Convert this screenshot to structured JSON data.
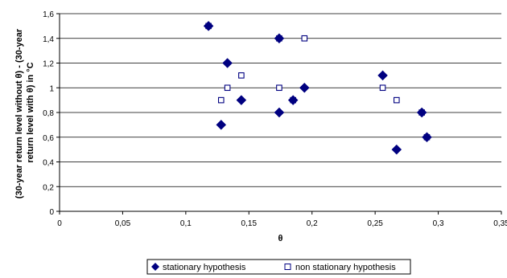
{
  "chart_data": {
    "type": "scatter",
    "xlabel": "θ",
    "ylabel_lines": [
      "(30-year return level without θ) - (30-year",
      "return level with θ) in °C"
    ],
    "xlim": [
      0,
      0.35
    ],
    "ylim": [
      0,
      1.6
    ],
    "xticks": [
      0,
      0.05,
      0.1,
      0.15,
      0.2,
      0.25,
      0.3,
      0.35
    ],
    "xtick_labels": [
      "0",
      "0,05",
      "0,1",
      "0,15",
      "0,2",
      "0,25",
      "0,3",
      "0,35"
    ],
    "yticks": [
      0,
      0.2,
      0.4,
      0.6,
      0.8,
      1.0,
      1.2,
      1.4,
      1.6
    ],
    "ytick_labels": [
      "0",
      "0,2",
      "0,4",
      "0,6",
      "0,8",
      "1",
      "1,2",
      "1,4",
      "1,6"
    ],
    "grid": "horizontal",
    "legend_position": "bottom",
    "colors": {
      "stationary": "#000080",
      "non_stationary": "#000080",
      "grid": "#000000"
    },
    "series": [
      {
        "name": "stationary hypothesis",
        "marker": "filled-diamond",
        "points": [
          {
            "x": 0.118,
            "y": 1.5
          },
          {
            "x": 0.128,
            "y": 0.7
          },
          {
            "x": 0.133,
            "y": 1.2
          },
          {
            "x": 0.144,
            "y": 0.9
          },
          {
            "x": 0.174,
            "y": 1.4
          },
          {
            "x": 0.174,
            "y": 0.8
          },
          {
            "x": 0.185,
            "y": 0.9
          },
          {
            "x": 0.194,
            "y": 1.0
          },
          {
            "x": 0.256,
            "y": 1.1
          },
          {
            "x": 0.267,
            "y": 0.5
          },
          {
            "x": 0.287,
            "y": 0.8
          },
          {
            "x": 0.291,
            "y": 0.6
          }
        ]
      },
      {
        "name": "non stationary hypothesis",
        "marker": "hollow-square",
        "points": [
          {
            "x": 0.118,
            "y": 1.5
          },
          {
            "x": 0.128,
            "y": 0.9
          },
          {
            "x": 0.133,
            "y": 1.0
          },
          {
            "x": 0.144,
            "y": 1.1
          },
          {
            "x": 0.174,
            "y": 1.4
          },
          {
            "x": 0.174,
            "y": 1.0
          },
          {
            "x": 0.185,
            "y": 0.9
          },
          {
            "x": 0.194,
            "y": 1.4
          },
          {
            "x": 0.256,
            "y": 1.0
          },
          {
            "x": 0.267,
            "y": 0.9
          },
          {
            "x": 0.287,
            "y": 0.8
          },
          {
            "x": 0.291,
            "y": 0.6
          }
        ]
      }
    ]
  }
}
